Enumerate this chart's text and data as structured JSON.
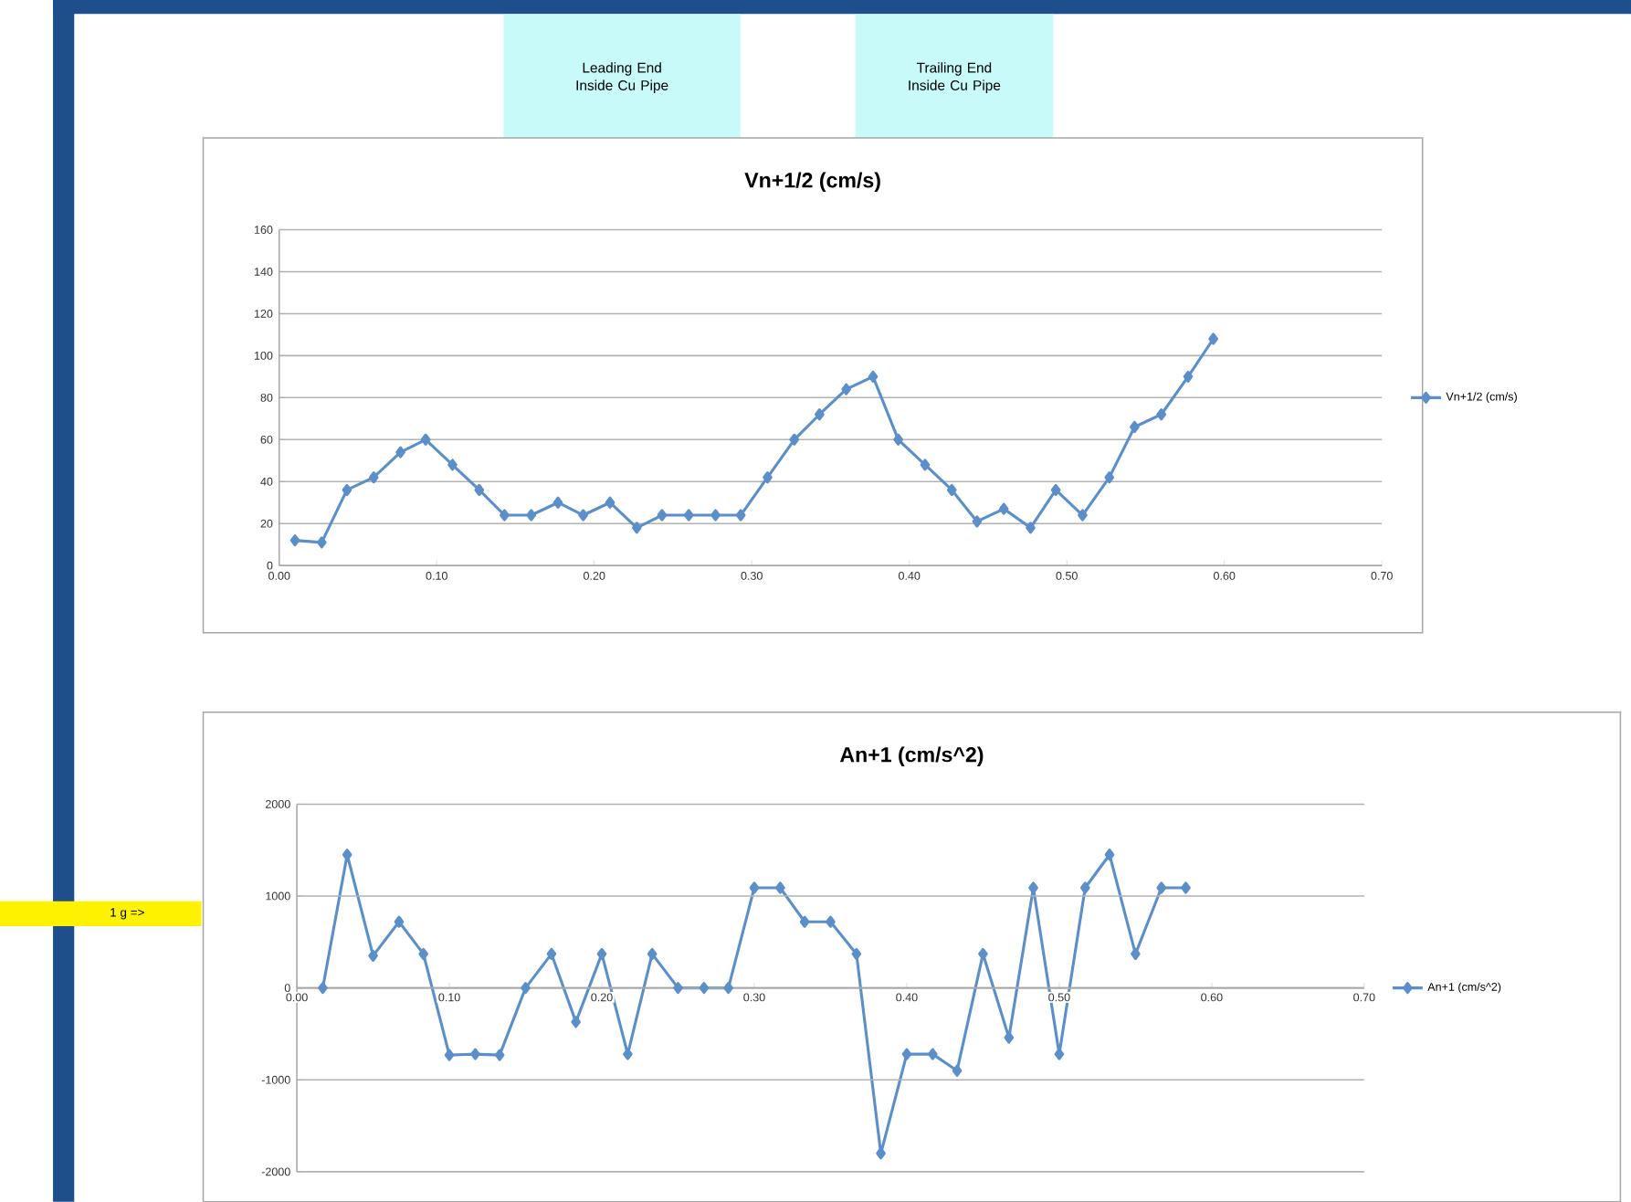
{
  "chart_data": [
    {
      "type": "line",
      "title": "Vn+1/2 (cm/s)",
      "series": [
        {
          "name": "Vn+1/2 (cm/s)",
          "color": "#5b8fc9",
          "x": [
            0.01,
            0.027,
            0.043,
            0.06,
            0.077,
            0.093,
            0.11,
            0.127,
            0.143,
            0.16,
            0.177,
            0.193,
            0.21,
            0.227,
            0.243,
            0.26,
            0.277,
            0.293,
            0.31,
            0.327,
            0.343,
            0.36,
            0.377,
            0.393,
            0.41,
            0.427,
            0.443,
            0.46,
            0.477,
            0.493,
            0.51,
            0.527,
            0.543,
            0.56,
            0.577,
            0.593
          ],
          "values": [
            12,
            11,
            36,
            42,
            54,
            60,
            48,
            36,
            24,
            24,
            30,
            24,
            30,
            18,
            24,
            24,
            24,
            24,
            42,
            60,
            72,
            84,
            90,
            60,
            48,
            36,
            21,
            27,
            18,
            36,
            24,
            42,
            66,
            72,
            90,
            108
          ]
        }
      ],
      "xlim": [
        0,
        0.7
      ],
      "ylim": [
        0,
        160
      ],
      "xticks": [
        {
          "value": 0,
          "label": "0.00"
        },
        {
          "value": 0.1,
          "label": "0.10"
        },
        {
          "value": 0.2,
          "label": "0.20"
        },
        {
          "value": 0.3,
          "label": "0.30"
        },
        {
          "value": 0.4,
          "label": "0.40"
        },
        {
          "value": 0.5,
          "label": "0.50"
        },
        {
          "value": 0.6,
          "label": "0.60"
        },
        {
          "value": 0.7,
          "label": "0.70"
        }
      ],
      "yticks": [
        0,
        20,
        40,
        60,
        80,
        100,
        120,
        140,
        160
      ],
      "grid": "y",
      "legend": "right",
      "marker": "diamond",
      "annotations": [
        "Leading End Inside Cu Pipe",
        "Trailing End Inside Cu Pipe"
      ]
    },
    {
      "type": "line",
      "title": "An+1 (cm/s^2)",
      "series": [
        {
          "name": "An+1 (cm/s^2)",
          "color": "#5b8fc9",
          "x": [
            0.017,
            0.033,
            0.05,
            0.067,
            0.083,
            0.1,
            0.117,
            0.133,
            0.15,
            0.167,
            0.183,
            0.2,
            0.217,
            0.233,
            0.25,
            0.267,
            0.283,
            0.3,
            0.317,
            0.333,
            0.35,
            0.367,
            0.383,
            0.4,
            0.417,
            0.433,
            0.45,
            0.467,
            0.483,
            0.5,
            0.517,
            0.533,
            0.55,
            0.567,
            0.583
          ],
          "values": [
            0,
            1450,
            350,
            720,
            370,
            -730,
            -720,
            -730,
            0,
            370,
            -370,
            370,
            -720,
            370,
            0,
            0,
            0,
            1090,
            1090,
            720,
            720,
            370,
            -1800,
            -720,
            -720,
            -900,
            370,
            -540,
            1090,
            -720,
            1090,
            1450,
            370,
            1090,
            1090
          ]
        }
      ],
      "xlim": [
        0,
        0.7
      ],
      "ylim": [
        -2000,
        2000
      ],
      "xticks": [
        {
          "value": 0,
          "label": "0.00"
        },
        {
          "value": 0.1,
          "label": "0.10"
        },
        {
          "value": 0.2,
          "label": "0.20"
        },
        {
          "value": 0.3,
          "label": "0.30"
        },
        {
          "value": 0.4,
          "label": "0.40"
        },
        {
          "value": 0.5,
          "label": "0.50"
        },
        {
          "value": 0.6,
          "label": "0.60"
        },
        {
          "value": 0.7,
          "label": "0.70"
        }
      ],
      "yticks": [
        -2000,
        -1000,
        0,
        1000,
        2000
      ],
      "grid": "y",
      "legend": "right",
      "marker": "diamond",
      "annotations": [
        "1 g =>"
      ]
    }
  ]
}
